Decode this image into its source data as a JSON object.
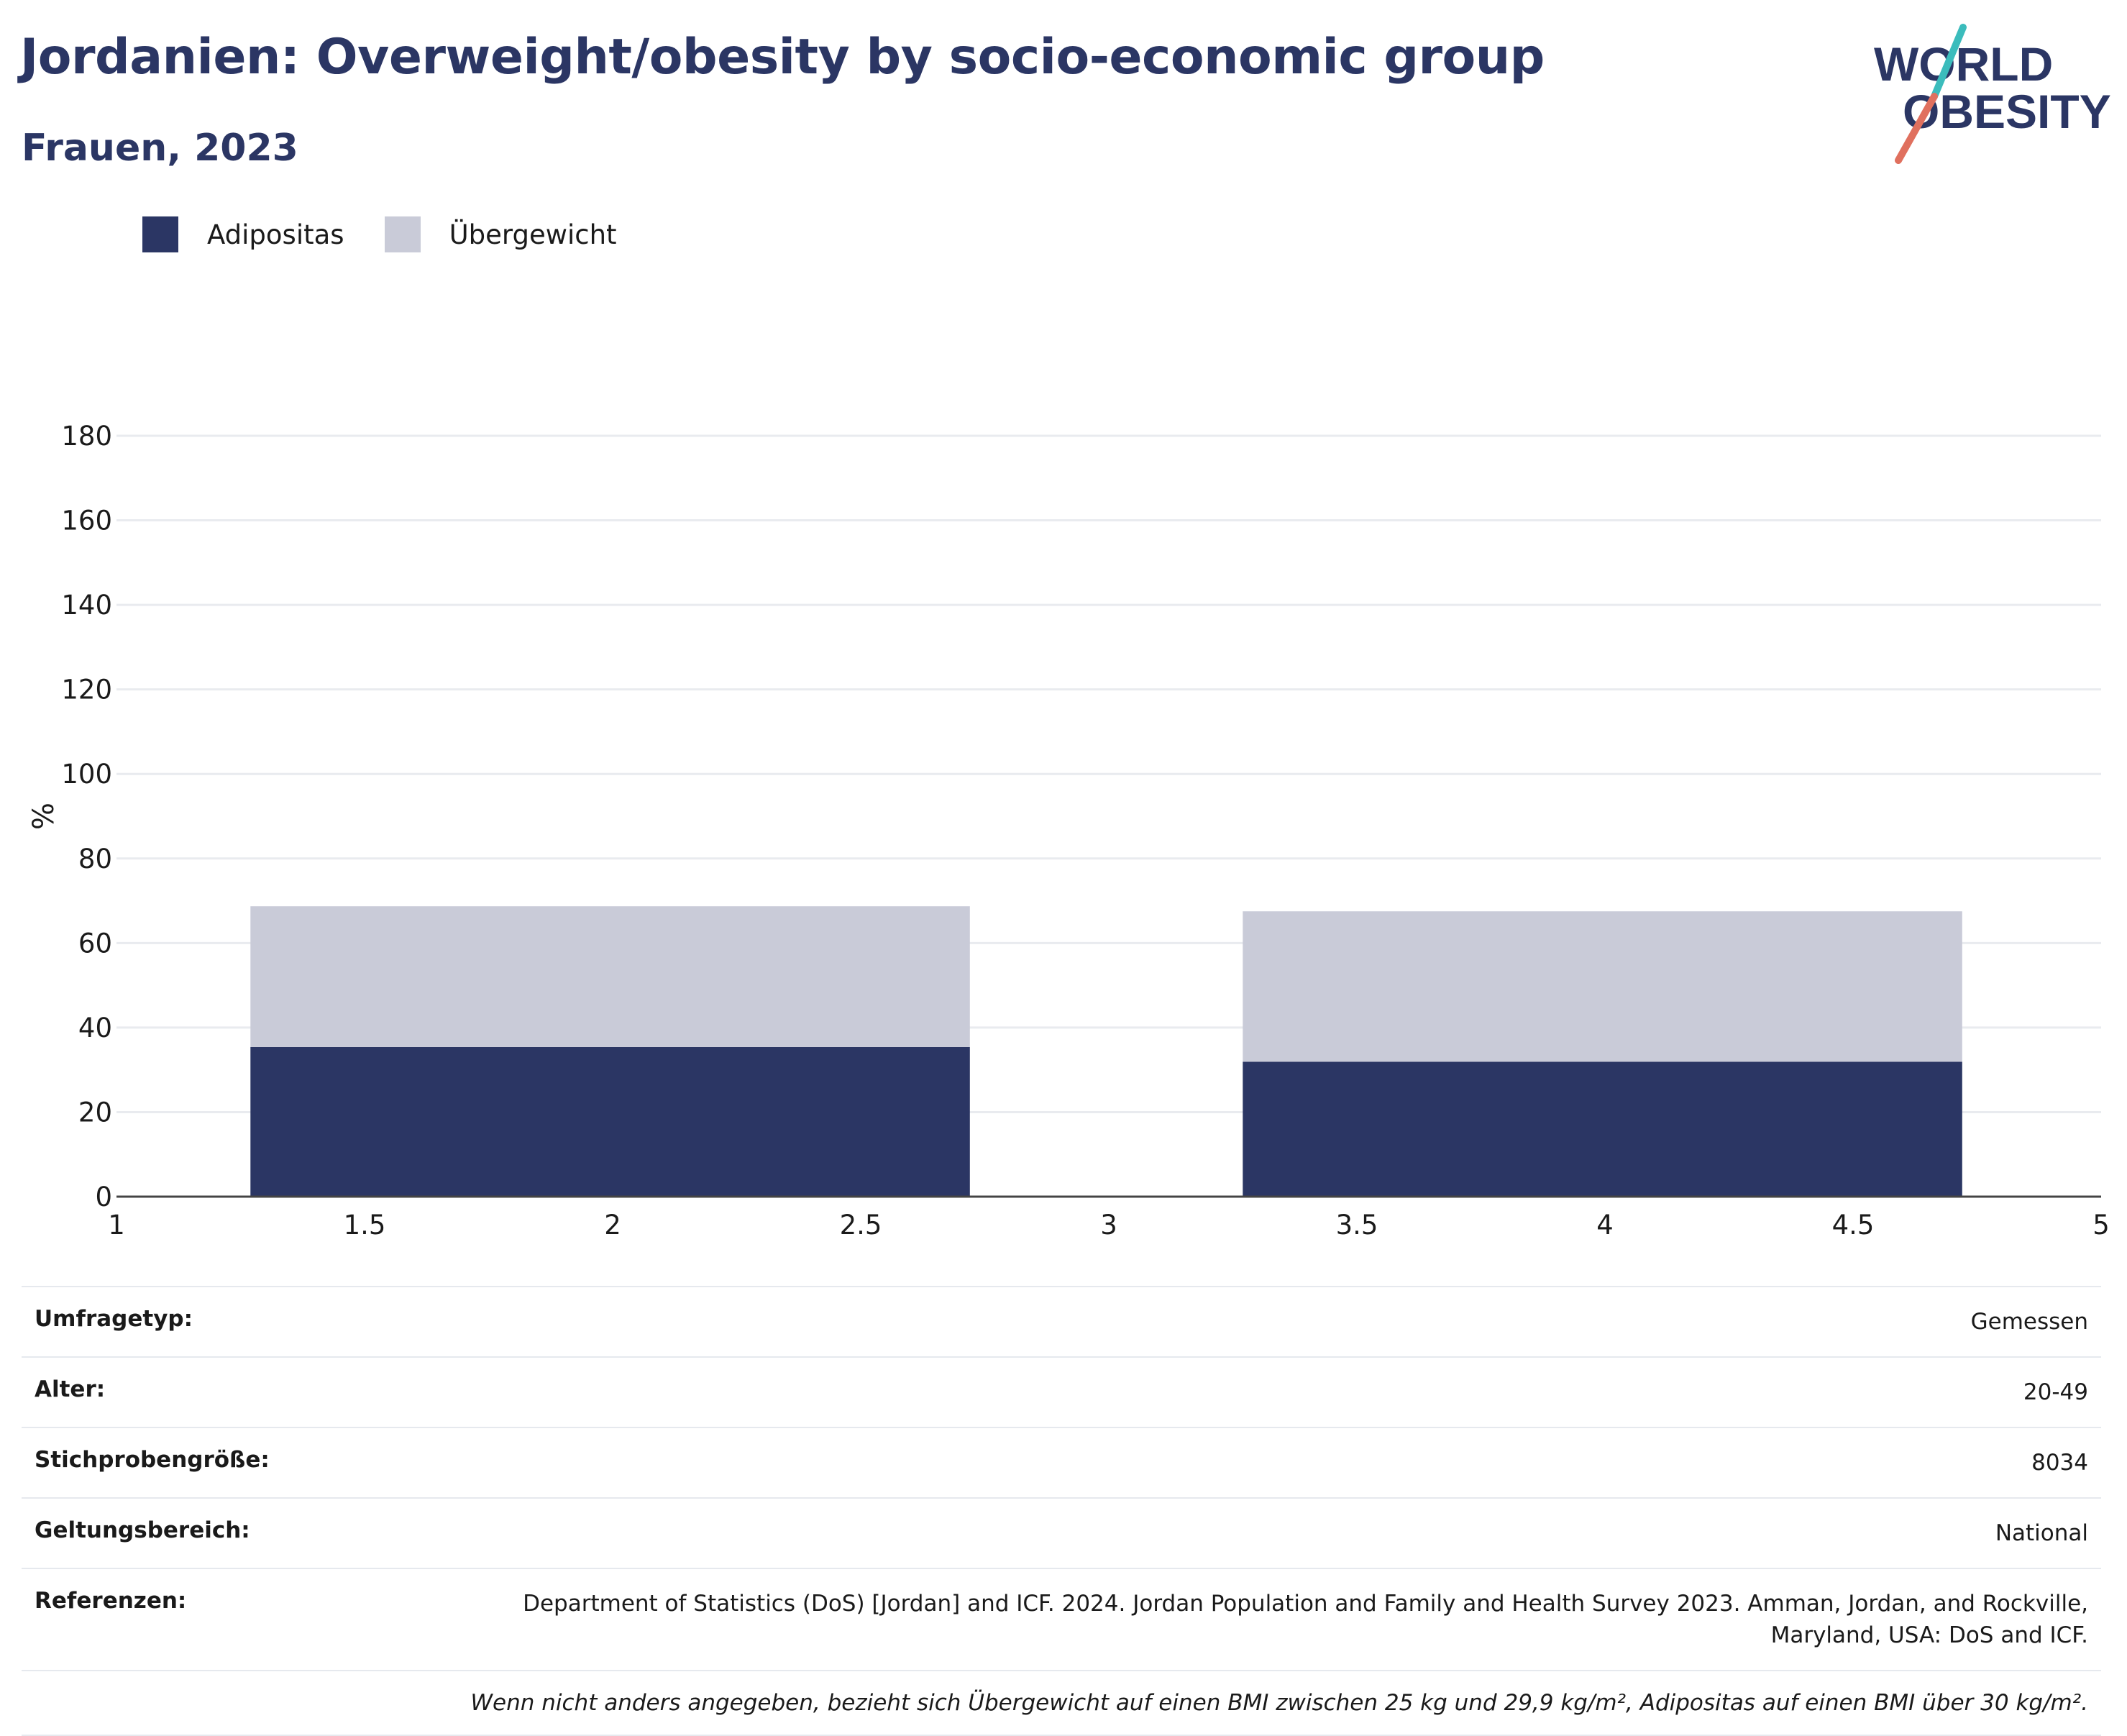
{
  "header": {
    "title": "Jordanien: Overweight/obesity by socio-economic group",
    "subtitle": "Frauen, 2023"
  },
  "logo": {
    "line1": "WORLD",
    "line2": "OBESITY",
    "colors": {
      "text": "#2b3664",
      "slash_top": "#3bbcbc",
      "slash_bottom": "#e0705e"
    }
  },
  "legend": [
    {
      "label": "Adipositas",
      "color": "#2b3664"
    },
    {
      "label": "Übergewicht",
      "color": "#c9cbd8"
    }
  ],
  "chart_data": {
    "type": "bar",
    "stacked": true,
    "xlim": [
      1,
      5
    ],
    "ylim": [
      0,
      180
    ],
    "xticks": [
      "1",
      "1.5",
      "2",
      "2.5",
      "3",
      "3.5",
      "4",
      "4.5",
      "5"
    ],
    "yticks": [
      "0",
      "20",
      "40",
      "60",
      "80",
      "100",
      "120",
      "140",
      "160",
      "180"
    ],
    "ylabel": "%",
    "xlabel": "",
    "grid": true,
    "legend_position": "top-left",
    "bars": [
      {
        "x_start": 1.27,
        "x_end": 2.72,
        "Adipositas": 35.4,
        "Übergewicht": 33.3
      },
      {
        "x_start": 3.27,
        "x_end": 4.72,
        "Adipositas": 31.9,
        "Übergewicht": 35.6
      }
    ],
    "series": [
      {
        "name": "Adipositas",
        "color": "#2b3664",
        "values": [
          35.4,
          31.9
        ]
      },
      {
        "name": "Übergewicht",
        "color": "#c9cbd8",
        "values": [
          33.3,
          35.6
        ]
      }
    ]
  },
  "meta": {
    "rows": [
      {
        "key": "Umfragetyp:",
        "value": "Gemessen"
      },
      {
        "key": "Alter:",
        "value": "20-49"
      },
      {
        "key": "Stichprobengröße:",
        "value": "8034"
      },
      {
        "key": "Geltungsbereich:",
        "value": "National"
      },
      {
        "key": "Referenzen:",
        "value": "Department of Statistics (DoS) [Jordan] and ICF. 2024. Jordan Population and Family and Health Survey 2023. Amman, Jordan, and Rockville, Maryland, USA: DoS and ICF."
      }
    ],
    "note": "Wenn nicht anders angegeben, bezieht sich Übergewicht auf einen BMI zwischen 25 kg und 29,9 kg/m², Adipositas auf einen BMI über 30 kg/m²."
  }
}
